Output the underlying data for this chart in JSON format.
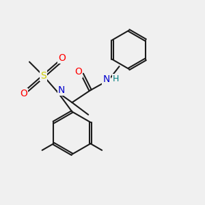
{
  "background_color": "#f0f0f0",
  "bond_color": "#1a1a1a",
  "atom_colors": {
    "O": "#ff0000",
    "N": "#0000cd",
    "S": "#cccc00",
    "H": "#008080",
    "C": "#1a1a1a"
  },
  "figsize": [
    3.0,
    3.0
  ],
  "dpi": 100
}
